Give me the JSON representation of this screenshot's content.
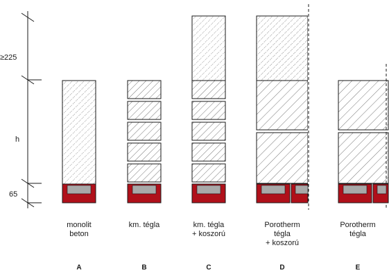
{
  "dimensions": {
    "top": "≥225",
    "middle": "h",
    "bottom": "65"
  },
  "columns": [
    {
      "letter": "A",
      "caption": "monolit\nbeton"
    },
    {
      "letter": "B",
      "caption": "km. tégla"
    },
    {
      "letter": "C",
      "caption": "km. tégla\n+ koszorú"
    },
    {
      "letter": "D",
      "caption": "Porotherm\ntégla\n+ koszorú"
    },
    {
      "letter": "E",
      "caption": "Porotherm\ntégla"
    }
  ],
  "colors": {
    "lintel_red": "#b0101a",
    "lintel_core": "#a9a9a9",
    "stroke": "#1a1a1a"
  }
}
